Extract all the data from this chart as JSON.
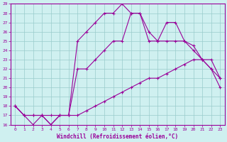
{
  "xlabel": "Windchill (Refroidissement éolien,°C)",
  "xlim": [
    -0.5,
    23.5
  ],
  "ylim": [
    16,
    29
  ],
  "xticks": [
    0,
    1,
    2,
    3,
    4,
    5,
    6,
    7,
    8,
    9,
    10,
    11,
    12,
    13,
    14,
    15,
    16,
    17,
    18,
    19,
    20,
    21,
    22,
    23
  ],
  "yticks": [
    16,
    17,
    18,
    19,
    20,
    21,
    22,
    23,
    24,
    25,
    26,
    27,
    28,
    29
  ],
  "bg_color": "#cff0f0",
  "line_color": "#990099",
  "grid_color": "#99cccc",
  "curve1_x": [
    0,
    1,
    2,
    3,
    4,
    5,
    6,
    7,
    8,
    9,
    10,
    11,
    12,
    13,
    14,
    15,
    16,
    17,
    18,
    19,
    20,
    21,
    22,
    23
  ],
  "curve1_y": [
    18,
    17,
    17,
    17,
    17,
    17,
    17,
    17,
    17.5,
    18,
    18.5,
    19,
    19.5,
    20,
    20.5,
    21,
    21,
    21.5,
    22,
    22.5,
    23,
    23,
    22,
    20
  ],
  "curve2_x": [
    0,
    1,
    2,
    3,
    4,
    5,
    6,
    7,
    8,
    9,
    10,
    11,
    12,
    13,
    14,
    15,
    16,
    17,
    18,
    19,
    20,
    21,
    22,
    23
  ],
  "curve2_y": [
    18,
    17,
    17,
    17,
    16,
    17,
    17,
    22,
    22,
    23,
    24,
    25,
    25,
    28,
    28,
    25,
    25,
    25,
    25,
    25,
    24.5,
    23,
    23,
    21
  ],
  "curve3_x": [
    0,
    1,
    2,
    3,
    4,
    5,
    6,
    7,
    8,
    9,
    10,
    11,
    12,
    13,
    14,
    15,
    16,
    17,
    18,
    19,
    20,
    21,
    22,
    23
  ],
  "curve3_y": [
    18,
    17,
    16,
    17,
    16,
    17,
    17,
    25,
    26,
    27,
    28,
    28,
    29,
    28,
    28,
    26,
    25,
    27,
    27,
    25,
    24,
    23,
    22,
    21
  ]
}
